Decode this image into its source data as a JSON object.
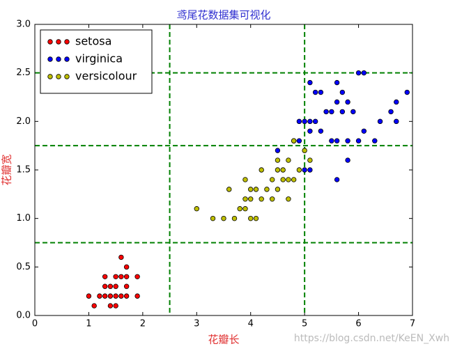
{
  "chart_data": {
    "type": "scatter",
    "title": "鸢尾花数据集可视化",
    "xlabel": "花瓣长",
    "ylabel": "花瓣宽",
    "xlim": [
      0,
      7
    ],
    "ylim": [
      0,
      3.0
    ],
    "xticks": [
      0,
      1,
      2,
      3,
      4,
      5,
      6,
      7
    ],
    "yticks": [
      {
        "value": 0,
        "label": "0.0"
      },
      {
        "value": 0.5,
        "label": "0.5"
      },
      {
        "value": 1,
        "label": "1.0"
      },
      {
        "value": 1.5,
        "label": "1.5"
      },
      {
        "value": 2,
        "label": "2.0"
      },
      {
        "value": 2.5,
        "label": "2.5"
      },
      {
        "value": 3,
        "label": "3.0"
      }
    ],
    "vlines": [
      2.5,
      5
    ],
    "hlines": [
      0.75,
      1.75,
      2.5
    ],
    "line_color": "#008000",
    "legend": "upper left",
    "watermark": "https://blog.csdn.net/KeEN_Xwh",
    "series": [
      {
        "name": "setosa",
        "color": "#ff0000",
        "x": [
          1.0,
          1.1,
          1.2,
          1.3,
          1.3,
          1.3,
          1.4,
          1.4,
          1.4,
          1.5,
          1.5,
          1.5,
          1.5,
          1.6,
          1.6,
          1.6,
          1.7,
          1.7,
          1.7,
          1.7,
          1.9,
          1.9
        ],
        "values": [
          0.2,
          0.1,
          0.2,
          0.2,
          0.3,
          0.4,
          0.1,
          0.2,
          0.3,
          0.1,
          0.2,
          0.3,
          0.4,
          0.2,
          0.4,
          0.6,
          0.2,
          0.3,
          0.4,
          0.5,
          0.2,
          0.4
        ]
      },
      {
        "name": "virginica",
        "color": "#0000ff",
        "x": [
          6.0,
          5.1,
          5.9,
          5.6,
          5.8,
          6.6,
          4.5,
          6.3,
          5.8,
          6.1,
          5.1,
          5.3,
          5.5,
          5.0,
          5.1,
          5.3,
          5.5,
          6.7,
          6.9,
          5.0,
          5.7,
          4.9,
          6.7,
          4.9,
          5.7,
          6.0,
          4.8,
          5.8,
          6.1,
          6.4,
          5.6,
          5.1,
          5.6,
          5.6,
          5.4,
          5.2,
          5.2
        ],
        "values": [
          2.5,
          1.9,
          2.1,
          1.8,
          2.2,
          2.1,
          1.7,
          1.8,
          1.8,
          2.5,
          2.0,
          1.9,
          2.1,
          2.0,
          2.4,
          2.3,
          1.8,
          2.2,
          2.3,
          1.5,
          2.3,
          2.0,
          2.0,
          1.8,
          2.1,
          1.8,
          1.8,
          1.6,
          1.9,
          2.0,
          2.2,
          1.5,
          1.4,
          2.4,
          2.1,
          2.3,
          2.0
        ]
      },
      {
        "name": "versicolour",
        "color": "#bfbf00",
        "x": [
          4.7,
          4.5,
          4.9,
          4.0,
          4.6,
          4.5,
          4.7,
          3.3,
          3.9,
          3.5,
          4.2,
          4.0,
          3.6,
          4.4,
          4.1,
          3.9,
          4.8,
          4.7,
          4.3,
          4.8,
          5.0,
          3.8,
          3.7,
          3.9,
          5.1,
          4.5,
          4.4,
          4.6,
          4.0,
          3.0,
          4.1,
          4.2
        ],
        "values": [
          1.4,
          1.5,
          1.5,
          1.3,
          1.5,
          1.3,
          1.6,
          1.0,
          1.4,
          1.0,
          1.5,
          1.0,
          1.3,
          1.4,
          1.0,
          1.1,
          1.8,
          1.2,
          1.3,
          1.4,
          1.7,
          1.1,
          1.0,
          1.2,
          1.6,
          1.6,
          1.2,
          1.4,
          1.2,
          1.1,
          1.3,
          1.2
        ]
      }
    ]
  }
}
